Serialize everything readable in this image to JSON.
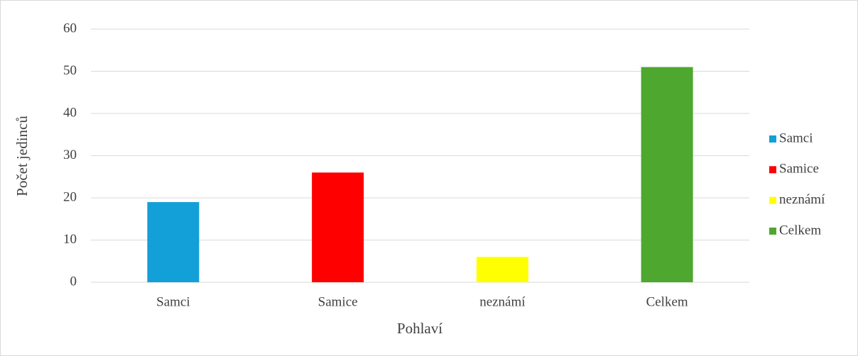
{
  "chart_data": {
    "type": "bar",
    "x_label": "Pohlaví",
    "y_label": "Počet jedinců",
    "categories": [
      "Samci",
      "Samice",
      "neznámí",
      "Celkem"
    ],
    "values": [
      19,
      26,
      6,
      51
    ],
    "colors": [
      "#139fd7",
      "#ff0000",
      "#ffff00",
      "#4ea72e"
    ],
    "ylim": [
      0,
      60
    ],
    "yticks": [
      0,
      10,
      20,
      30,
      40,
      50,
      60
    ],
    "grid": true,
    "legend": "right"
  }
}
